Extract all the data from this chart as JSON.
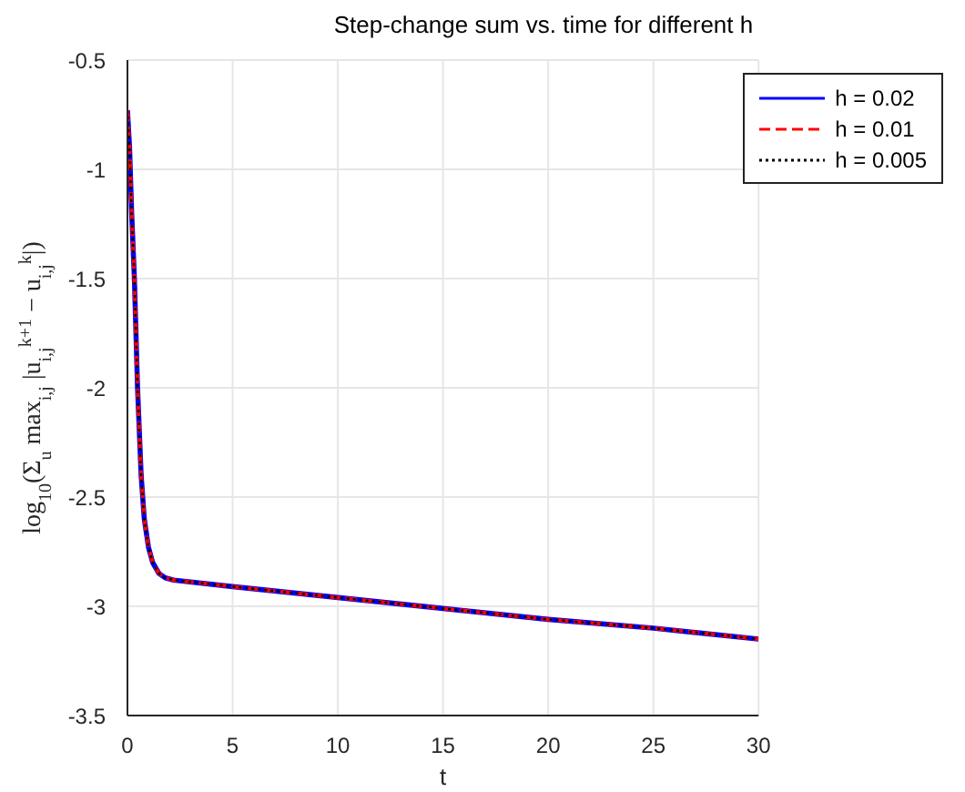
{
  "chart_data": {
    "type": "line",
    "title": "Step-change sum vs. time for different h",
    "xlabel": "t",
    "ylabel": "log$_{10}$(Σ$_{u}$ max$_{i,j}$ |u$_{i,j}$$^{k+1}$ − u$_{i,j}$$^{k}$|)",
    "x": [
      0,
      0.1,
      0.2,
      0.33,
      0.48,
      0.65,
      0.8,
      1,
      1.2,
      1.5,
      1.8,
      2.2,
      5,
      10,
      15,
      20,
      25,
      30
    ],
    "series": [
      {
        "name": "h = 0.02",
        "color": "#0000ff",
        "line_style": "solid",
        "values": [
          -0.73,
          -0.9,
          -1.2,
          -1.5,
          -2,
          -2.4,
          -2.6,
          -2.73,
          -2.8,
          -2.85,
          -2.87,
          -2.88,
          -2.91,
          -2.96,
          -3.01,
          -3.06,
          -3.1,
          -3.15
        ]
      },
      {
        "name": "h = 0.01",
        "color": "#ff0000",
        "line_style": "dashed",
        "values": [
          -0.73,
          -0.9,
          -1.2,
          -1.5,
          -2,
          -2.4,
          -2.6,
          -2.73,
          -2.8,
          -2.85,
          -2.87,
          -2.88,
          -2.91,
          -2.96,
          -3.01,
          -3.06,
          -3.1,
          -3.15
        ]
      },
      {
        "name": "h = 0.005",
        "color": "#000000",
        "line_style": "dotted",
        "values": [
          -0.73,
          -0.9,
          -1.2,
          -1.5,
          -2,
          -2.4,
          -2.6,
          -2.73,
          -2.8,
          -2.85,
          -2.87,
          -2.88,
          -2.91,
          -2.96,
          -3.01,
          -3.06,
          -3.1,
          -3.15
        ]
      }
    ],
    "xlim": [
      0,
      30
    ],
    "xticks": [
      0,
      5,
      10,
      15,
      20,
      25,
      30
    ],
    "ylim": [
      -3.5,
      -0.5
    ],
    "yticks": [
      -3.5,
      -3,
      -2.5,
      -2,
      -1.5,
      -1,
      -0.5
    ],
    "grid": true,
    "legend": "top right",
    "marker": "none"
  }
}
